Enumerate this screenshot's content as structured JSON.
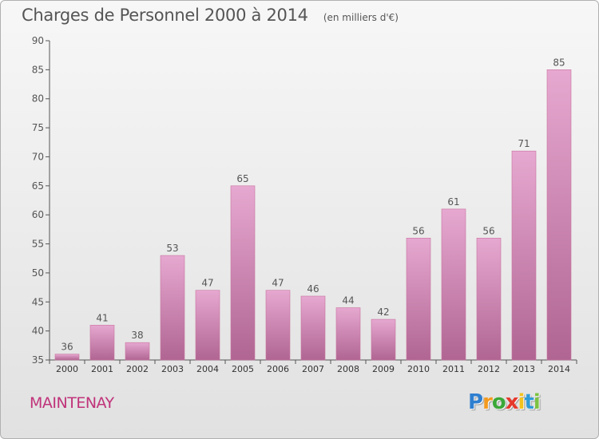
{
  "header": {
    "title": "Charges de Personnel 2000 à 2014",
    "subtitle": "(en milliers d'€)"
  },
  "location_name": "MAINTENAY",
  "brand": {
    "name": "Proxiti",
    "letters": [
      {
        "ch": "P",
        "color": "#2f7fd0"
      },
      {
        "ch": "r",
        "color": "#f39a1e"
      },
      {
        "ch": "o",
        "color": "#3aa838"
      },
      {
        "ch": "x",
        "color": "#e5392c"
      },
      {
        "ch": "i",
        "color": "#f3c21e"
      },
      {
        "ch": "t",
        "color": "#2f9bd6"
      },
      {
        "ch": "i",
        "color": "#7cc242"
      }
    ]
  },
  "colors": {
    "bar_top": "#e6a8d0",
    "bar_bottom": "#b06592",
    "bar_edge": "#c9739f",
    "axis": "#555555",
    "grid": "#cccccc",
    "accent": "#c0337a"
  },
  "chart_data": {
    "type": "bar",
    "categories": [
      "2000",
      "2001",
      "2002",
      "2003",
      "2004",
      "2005",
      "2006",
      "2007",
      "2008",
      "2009",
      "2010",
      "2011",
      "2012",
      "2013",
      "2014"
    ],
    "values": [
      36,
      41,
      38,
      53,
      47,
      65,
      47,
      46,
      44,
      42,
      56,
      61,
      56,
      71,
      85
    ],
    "title": "Charges de Personnel 2000 à 2014",
    "subtitle": "(en milliers d'€)",
    "xlabel": "",
    "ylabel": "",
    "ylim": [
      35,
      90
    ],
    "yticks": [
      35,
      40,
      45,
      50,
      55,
      60,
      65,
      70,
      75,
      80,
      85,
      90
    ],
    "data_labels": true,
    "grid": false,
    "legend": "none"
  }
}
